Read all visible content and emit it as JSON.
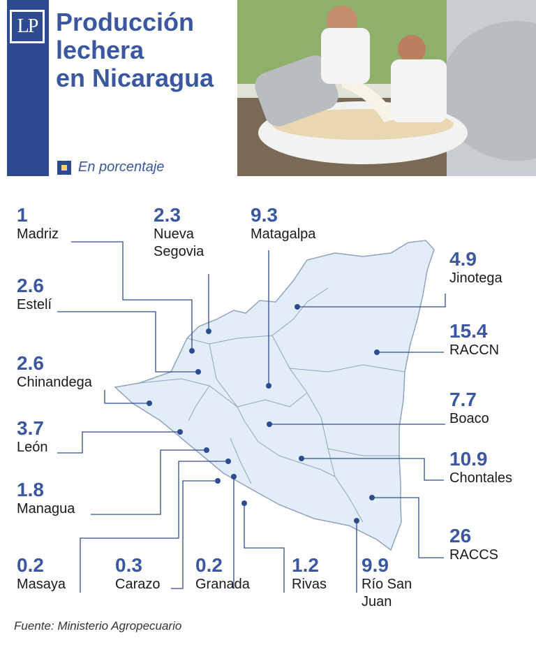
{
  "header": {
    "logo_text": "LP",
    "title_lines": [
      "Producción",
      "lechera",
      "en Nicaragua"
    ],
    "unit": "En porcentaje"
  },
  "photo": {
    "description_icon": "milk-pouring-photo"
  },
  "regions": [
    {
      "name": "Madriz",
      "value": "1"
    },
    {
      "name": "Nueva Segovia",
      "value": "2.3"
    },
    {
      "name": "Matagalpa",
      "value": "9.3"
    },
    {
      "name": "Jinotega",
      "value": "4.9"
    },
    {
      "name": "Estelí",
      "value": "2.6"
    },
    {
      "name": "RACCN",
      "value": "15.4"
    },
    {
      "name": "Chinandega",
      "value": "2.6"
    },
    {
      "name": "Boaco",
      "value": "7.7"
    },
    {
      "name": "León",
      "value": "3.7"
    },
    {
      "name": "Chontales",
      "value": "10.9"
    },
    {
      "name": "Managua",
      "value": "1.8"
    },
    {
      "name": "RACCS",
      "value": "26"
    },
    {
      "name": "Masaya",
      "value": "0.2"
    },
    {
      "name": "Carazo",
      "value": "0.3"
    },
    {
      "name": "Granada",
      "value": "0.2"
    },
    {
      "name": "Rivas",
      "value": "1.2"
    },
    {
      "name": "Río San Juan",
      "value": "9.9"
    }
  ],
  "source": "Fuente: Ministerio Agropecuario",
  "colors": {
    "brand": "#2f4b8f",
    "title": "#3a57a0",
    "map_fill": "#e3edf7",
    "map_border": "#8fa3bd",
    "leader": "#2f4b8f"
  }
}
